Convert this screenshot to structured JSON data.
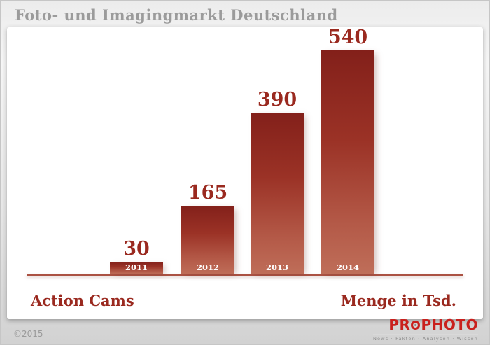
{
  "header": {
    "title": "Foto- und Imagingmarkt Deutschland"
  },
  "chart_data": {
    "type": "bar",
    "title": "Foto- und Imagingmarkt Deutschland",
    "categories": [
      "2011",
      "2012",
      "2013",
      "2014"
    ],
    "values": [
      30,
      165,
      390,
      540
    ],
    "xlabel": "Action Cams",
    "ylabel": "Menge in Tsd.",
    "ylim": [
      0,
      560
    ],
    "grid": false,
    "legend": false,
    "bar_color_top": "#83201a",
    "bar_color_bottom": "#bf6e59",
    "value_label_color": "#9a291f",
    "year_label_color": "#ffffff"
  },
  "axis": {
    "left_label": "Action Cams",
    "right_label": "Menge in Tsd."
  },
  "footer": {
    "copyright": "©2015",
    "logo_pr": "PR",
    "logo_photo": "PHOTO",
    "logo_icon": "aperture-icon",
    "logo_tagline": "News · Fakten · Analysen · Wissen",
    "logo_color": "#c9201d"
  }
}
